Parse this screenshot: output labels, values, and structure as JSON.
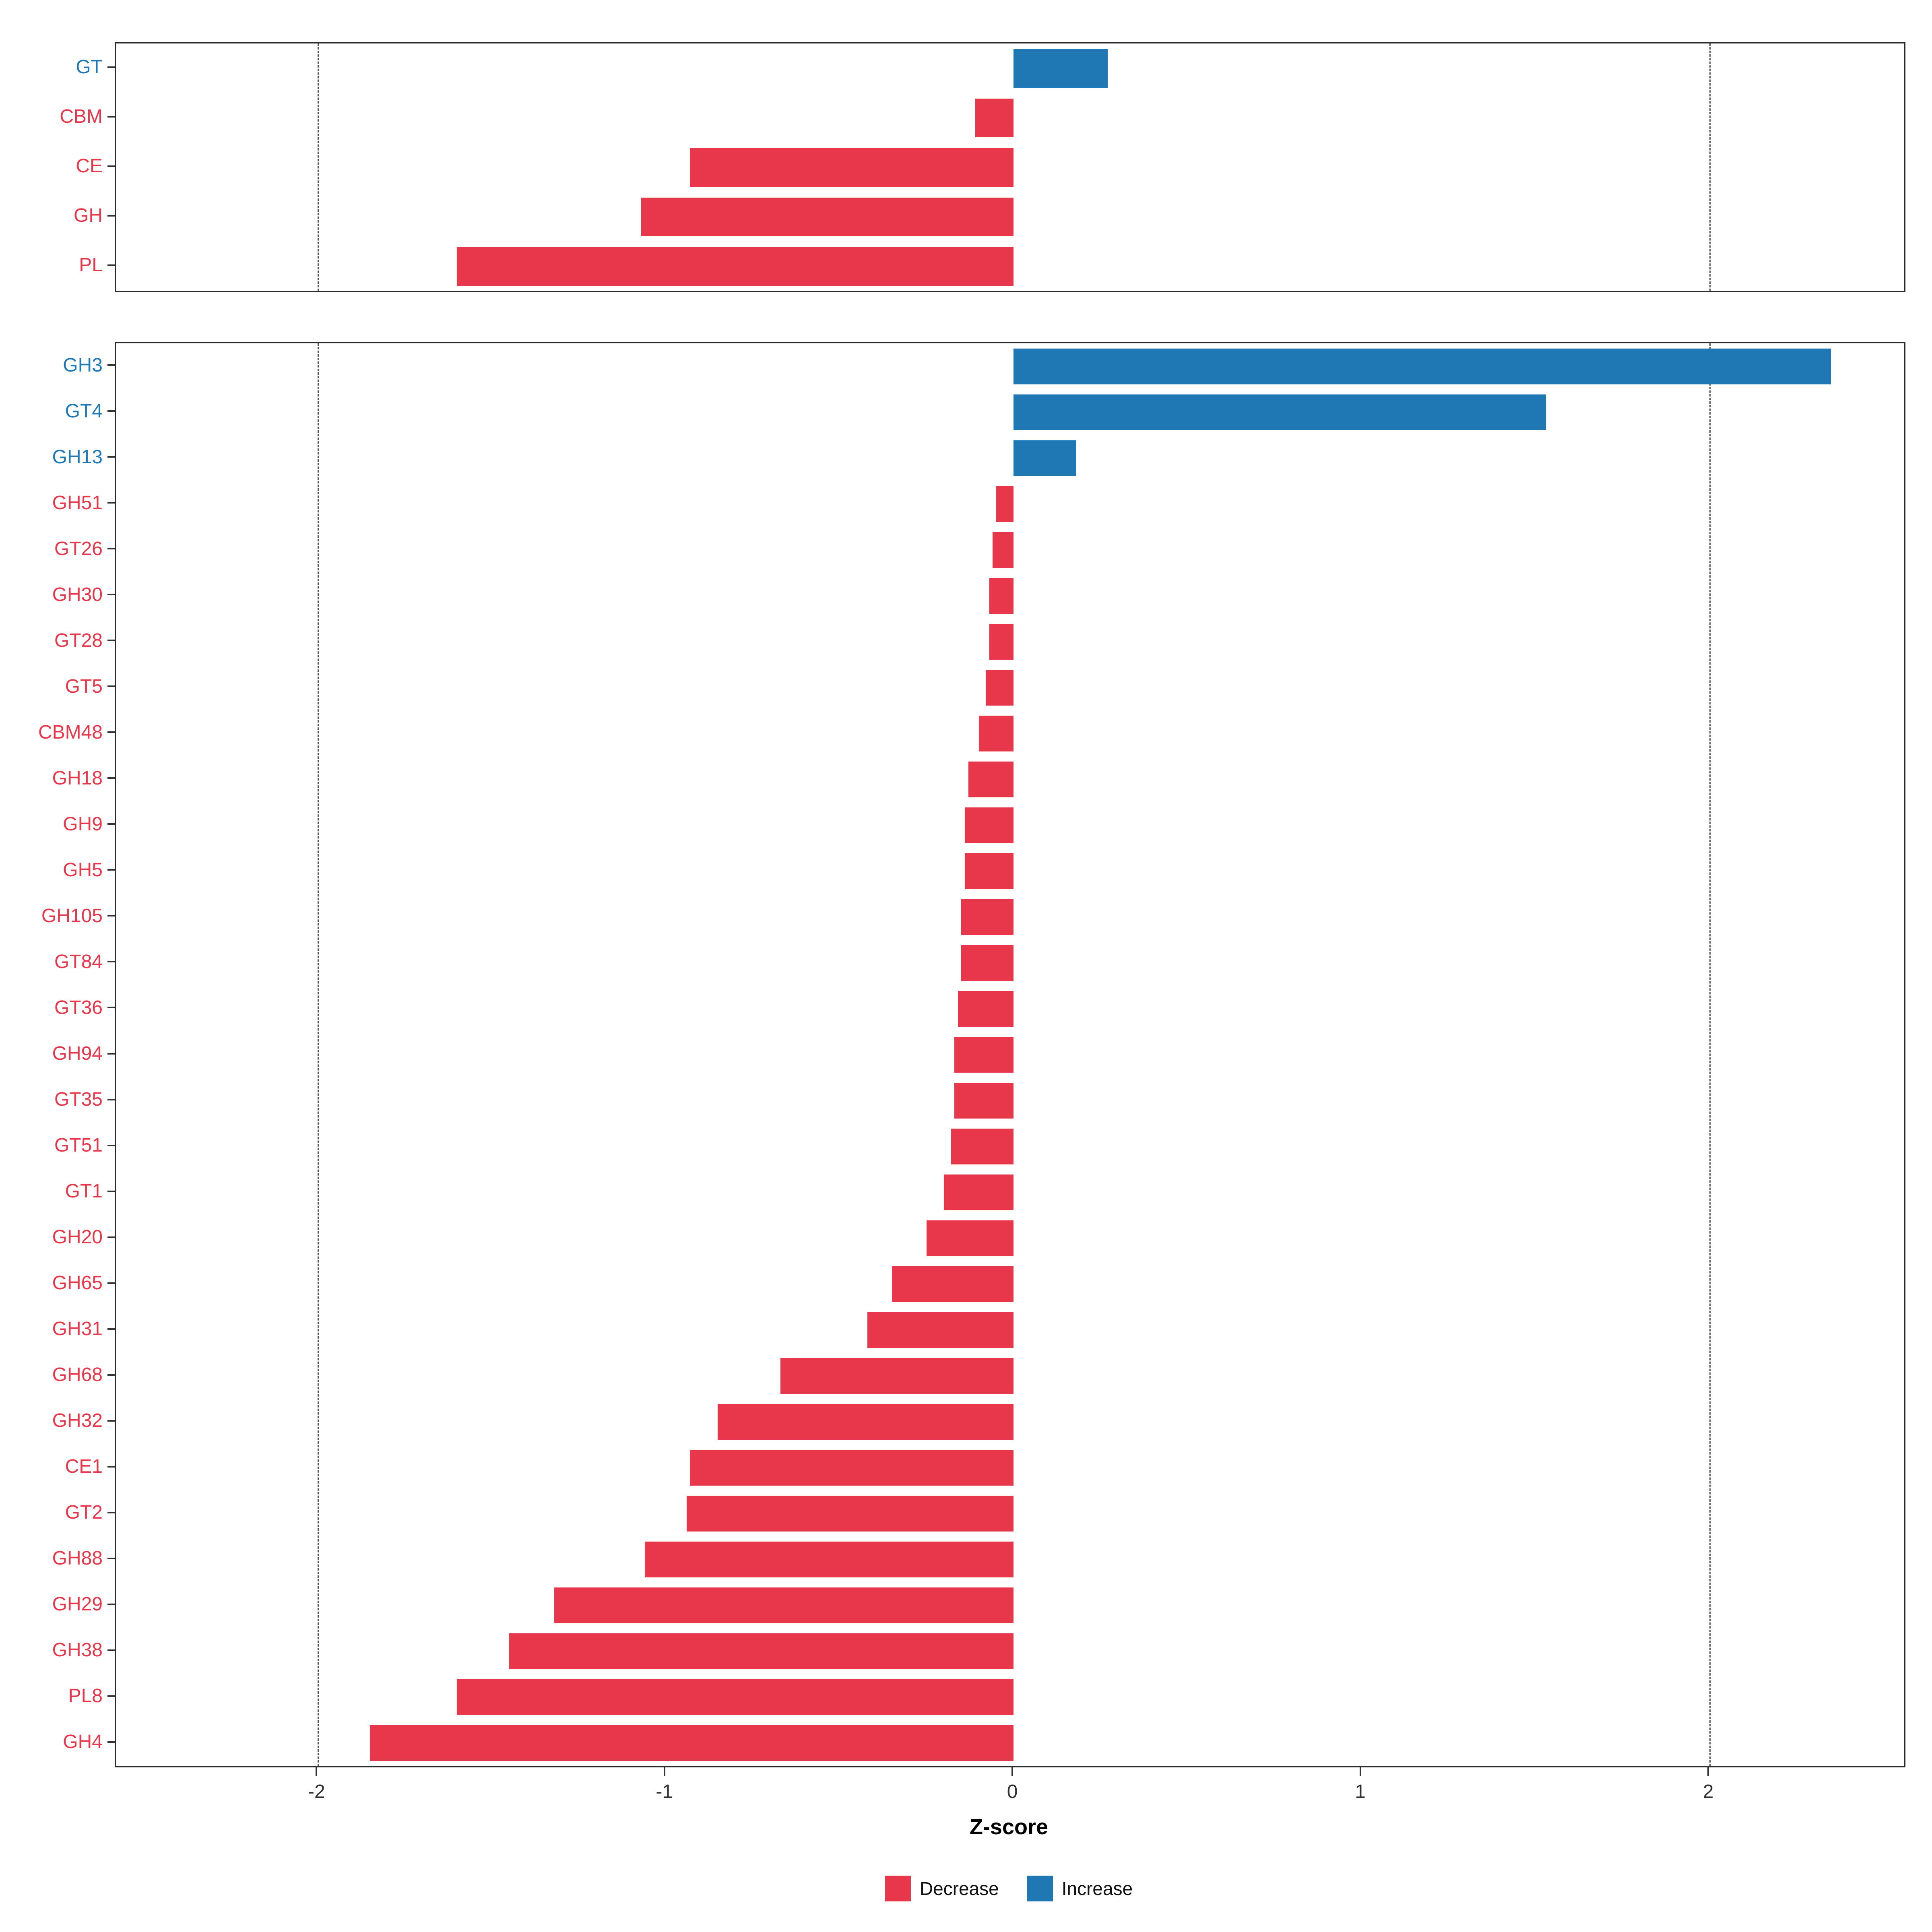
{
  "colors": {
    "decrease": "#E8374A",
    "increase": "#1F77B4",
    "panel_border": "#2b2b2b",
    "grid_dash": "#555555",
    "axis_text": "#303030"
  },
  "axis": {
    "label": "Z-score",
    "ticks": [
      -2,
      -1,
      0,
      1,
      2
    ],
    "tick_labels": [
      "-2",
      "-1",
      "0",
      "1",
      "2"
    ],
    "min": -2.58,
    "max": 2.56,
    "dashed_gridlines": [
      -2,
      2
    ]
  },
  "legend": {
    "items": [
      {
        "label": "Decrease",
        "color_key": "decrease"
      },
      {
        "label": "Increase",
        "color_key": "increase"
      }
    ]
  },
  "chart_data": {
    "type": "bar",
    "orientation": "horizontal",
    "title": "",
    "xlabel": "Z-score",
    "ylabel": "",
    "xlim": [
      -2.58,
      2.56
    ],
    "grid": "dashed at -2 and 2",
    "legend_position": "bottom",
    "panels": [
      {
        "name": "top",
        "categories": [
          "GT",
          "CBM",
          "CE",
          "GH",
          "PL"
        ],
        "values": [
          0.27,
          -0.11,
          -0.93,
          -1.07,
          -1.6
        ]
      },
      {
        "name": "bottom",
        "categories": [
          "GH3",
          "GT4",
          "GH13",
          "GH51",
          "GT26",
          "GH30",
          "GT28",
          "GT5",
          "CBM48",
          "GH18",
          "GH9",
          "GH5",
          "GH105",
          "GT84",
          "GT36",
          "GH94",
          "GT35",
          "GT51",
          "GT1",
          "GH20",
          "GH65",
          "GH31",
          "GH68",
          "GH32",
          "CE1",
          "GT2",
          "GH88",
          "GH29",
          "GH38",
          "PL8",
          "GH4"
        ],
        "values": [
          2.35,
          1.53,
          0.18,
          -0.05,
          -0.06,
          -0.07,
          -0.07,
          -0.08,
          -0.1,
          -0.13,
          -0.14,
          -0.14,
          -0.15,
          -0.15,
          -0.16,
          -0.17,
          -0.17,
          -0.18,
          -0.2,
          -0.25,
          -0.35,
          -0.42,
          -0.67,
          -0.85,
          -0.93,
          -0.94,
          -1.06,
          -1.32,
          -1.45,
          -1.6,
          -1.85
        ]
      }
    ]
  }
}
